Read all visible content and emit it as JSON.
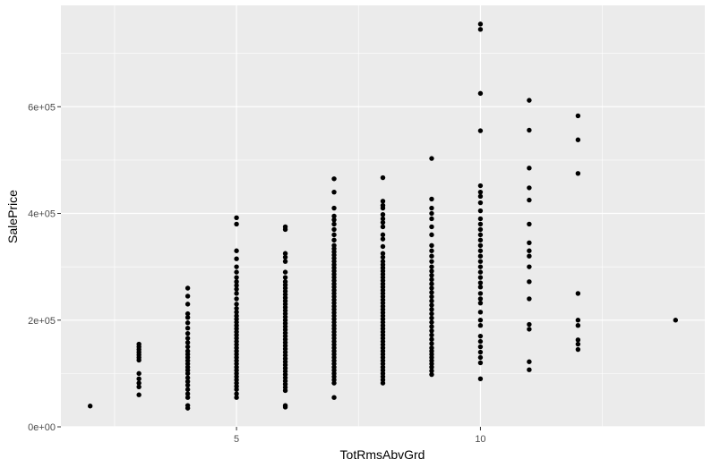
{
  "chart_data": {
    "type": "scatter",
    "xlabel": "TotRmsAbvGrd",
    "ylabel": "SalePrice",
    "xlim": [
      1.4,
      14.6
    ],
    "ylim": [
      0,
      790000
    ],
    "x_ticks": [
      {
        "value": 5,
        "label": "5"
      },
      {
        "value": 10,
        "label": "10"
      }
    ],
    "x_minor_ticks": [
      2.5,
      7.5,
      12.5
    ],
    "y_ticks": [
      {
        "value": 0,
        "label": "0e+00"
      },
      {
        "value": 200000,
        "label": "2e+05"
      },
      {
        "value": 400000,
        "label": "4e+05"
      },
      {
        "value": 600000,
        "label": "6e+05"
      }
    ],
    "y_minor_ticks": [
      100000,
      300000,
      500000,
      700000
    ],
    "grid": true,
    "colors": {
      "panel": "#ebebeb",
      "grid": "#ffffff",
      "point": "#000000"
    },
    "points": [
      [
        2,
        39000
      ],
      [
        3,
        60000
      ],
      [
        3,
        75000
      ],
      [
        3,
        82000
      ],
      [
        3,
        90000
      ],
      [
        3,
        100000
      ],
      [
        3,
        125000
      ],
      [
        3,
        130000
      ],
      [
        3,
        135000
      ],
      [
        3,
        140000
      ],
      [
        3,
        145000
      ],
      [
        3,
        150000
      ],
      [
        3,
        155000
      ],
      [
        4,
        35000
      ],
      [
        4,
        40000
      ],
      [
        4,
        55000
      ],
      [
        4,
        62000
      ],
      [
        4,
        70000
      ],
      [
        4,
        78000
      ],
      [
        4,
        85000
      ],
      [
        4,
        92000
      ],
      [
        4,
        100000
      ],
      [
        4,
        106000
      ],
      [
        4,
        112000
      ],
      [
        4,
        118000
      ],
      [
        4,
        124000
      ],
      [
        4,
        130000
      ],
      [
        4,
        136000
      ],
      [
        4,
        142000
      ],
      [
        4,
        150000
      ],
      [
        4,
        158000
      ],
      [
        4,
        166000
      ],
      [
        4,
        175000
      ],
      [
        4,
        185000
      ],
      [
        4,
        195000
      ],
      [
        4,
        205000
      ],
      [
        4,
        212000
      ],
      [
        4,
        230000
      ],
      [
        4,
        245000
      ],
      [
        4,
        260000
      ],
      [
        5,
        55000
      ],
      [
        5,
        62000
      ],
      [
        5,
        70000
      ],
      [
        5,
        76000
      ],
      [
        5,
        82000
      ],
      [
        5,
        88000
      ],
      [
        5,
        94000
      ],
      [
        5,
        100000
      ],
      [
        5,
        106000
      ],
      [
        5,
        112000
      ],
      [
        5,
        118000
      ],
      [
        5,
        124000
      ],
      [
        5,
        130000
      ],
      [
        5,
        136000
      ],
      [
        5,
        142000
      ],
      [
        5,
        148000
      ],
      [
        5,
        154000
      ],
      [
        5,
        160000
      ],
      [
        5,
        166000
      ],
      [
        5,
        172000
      ],
      [
        5,
        178000
      ],
      [
        5,
        184000
      ],
      [
        5,
        190000
      ],
      [
        5,
        196000
      ],
      [
        5,
        202000
      ],
      [
        5,
        208000
      ],
      [
        5,
        215000
      ],
      [
        5,
        222000
      ],
      [
        5,
        230000
      ],
      [
        5,
        240000
      ],
      [
        5,
        250000
      ],
      [
        5,
        258000
      ],
      [
        5,
        265000
      ],
      [
        5,
        272000
      ],
      [
        5,
        280000
      ],
      [
        5,
        290000
      ],
      [
        5,
        300000
      ],
      [
        5,
        315000
      ],
      [
        5,
        330000
      ],
      [
        5,
        380000
      ],
      [
        5,
        392000
      ],
      [
        6,
        37000
      ],
      [
        6,
        40000
      ],
      [
        6,
        68000
      ],
      [
        6,
        74000
      ],
      [
        6,
        80000
      ],
      [
        6,
        86000
      ],
      [
        6,
        92000
      ],
      [
        6,
        98000
      ],
      [
        6,
        104000
      ],
      [
        6,
        110000
      ],
      [
        6,
        116000
      ],
      [
        6,
        122000
      ],
      [
        6,
        128000
      ],
      [
        6,
        134000
      ],
      [
        6,
        140000
      ],
      [
        6,
        146000
      ],
      [
        6,
        152000
      ],
      [
        6,
        158000
      ],
      [
        6,
        164000
      ],
      [
        6,
        170000
      ],
      [
        6,
        176000
      ],
      [
        6,
        182000
      ],
      [
        6,
        188000
      ],
      [
        6,
        194000
      ],
      [
        6,
        200000
      ],
      [
        6,
        206000
      ],
      [
        6,
        212000
      ],
      [
        6,
        218000
      ],
      [
        6,
        224000
      ],
      [
        6,
        230000
      ],
      [
        6,
        236000
      ],
      [
        6,
        242000
      ],
      [
        6,
        248000
      ],
      [
        6,
        254000
      ],
      [
        6,
        260000
      ],
      [
        6,
        266000
      ],
      [
        6,
        272000
      ],
      [
        6,
        280000
      ],
      [
        6,
        290000
      ],
      [
        6,
        310000
      ],
      [
        6,
        318000
      ],
      [
        6,
        325000
      ],
      [
        6,
        370000
      ],
      [
        6,
        375000
      ],
      [
        7,
        55000
      ],
      [
        7,
        82000
      ],
      [
        7,
        88000
      ],
      [
        7,
        94000
      ],
      [
        7,
        100000
      ],
      [
        7,
        106000
      ],
      [
        7,
        112000
      ],
      [
        7,
        118000
      ],
      [
        7,
        124000
      ],
      [
        7,
        130000
      ],
      [
        7,
        136000
      ],
      [
        7,
        142000
      ],
      [
        7,
        148000
      ],
      [
        7,
        154000
      ],
      [
        7,
        160000
      ],
      [
        7,
        166000
      ],
      [
        7,
        172000
      ],
      [
        7,
        178000
      ],
      [
        7,
        184000
      ],
      [
        7,
        190000
      ],
      [
        7,
        196000
      ],
      [
        7,
        202000
      ],
      [
        7,
        208000
      ],
      [
        7,
        214000
      ],
      [
        7,
        220000
      ],
      [
        7,
        226000
      ],
      [
        7,
        232000
      ],
      [
        7,
        238000
      ],
      [
        7,
        244000
      ],
      [
        7,
        250000
      ],
      [
        7,
        256000
      ],
      [
        7,
        262000
      ],
      [
        7,
        268000
      ],
      [
        7,
        274000
      ],
      [
        7,
        280000
      ],
      [
        7,
        286000
      ],
      [
        7,
        292000
      ],
      [
        7,
        298000
      ],
      [
        7,
        304000
      ],
      [
        7,
        310000
      ],
      [
        7,
        316000
      ],
      [
        7,
        322000
      ],
      [
        7,
        328000
      ],
      [
        7,
        334000
      ],
      [
        7,
        340000
      ],
      [
        7,
        350000
      ],
      [
        7,
        360000
      ],
      [
        7,
        370000
      ],
      [
        7,
        380000
      ],
      [
        7,
        388000
      ],
      [
        7,
        395000
      ],
      [
        7,
        410000
      ],
      [
        7,
        440000
      ],
      [
        7,
        465000
      ],
      [
        8,
        82000
      ],
      [
        8,
        88000
      ],
      [
        8,
        94000
      ],
      [
        8,
        100000
      ],
      [
        8,
        106000
      ],
      [
        8,
        112000
      ],
      [
        8,
        118000
      ],
      [
        8,
        124000
      ],
      [
        8,
        130000
      ],
      [
        8,
        136000
      ],
      [
        8,
        142000
      ],
      [
        8,
        148000
      ],
      [
        8,
        154000
      ],
      [
        8,
        160000
      ],
      [
        8,
        166000
      ],
      [
        8,
        172000
      ],
      [
        8,
        178000
      ],
      [
        8,
        184000
      ],
      [
        8,
        190000
      ],
      [
        8,
        196000
      ],
      [
        8,
        202000
      ],
      [
        8,
        208000
      ],
      [
        8,
        214000
      ],
      [
        8,
        220000
      ],
      [
        8,
        226000
      ],
      [
        8,
        232000
      ],
      [
        8,
        238000
      ],
      [
        8,
        244000
      ],
      [
        8,
        250000
      ],
      [
        8,
        256000
      ],
      [
        8,
        262000
      ],
      [
        8,
        268000
      ],
      [
        8,
        274000
      ],
      [
        8,
        280000
      ],
      [
        8,
        286000
      ],
      [
        8,
        292000
      ],
      [
        8,
        298000
      ],
      [
        8,
        304000
      ],
      [
        8,
        310000
      ],
      [
        8,
        318000
      ],
      [
        8,
        325000
      ],
      [
        8,
        338000
      ],
      [
        8,
        352000
      ],
      [
        8,
        360000
      ],
      [
        8,
        375000
      ],
      [
        8,
        383000
      ],
      [
        8,
        390000
      ],
      [
        8,
        398000
      ],
      [
        8,
        410000
      ],
      [
        8,
        415000
      ],
      [
        8,
        423000
      ],
      [
        8,
        467000
      ],
      [
        9,
        98000
      ],
      [
        9,
        105000
      ],
      [
        9,
        112000
      ],
      [
        9,
        118000
      ],
      [
        9,
        124000
      ],
      [
        9,
        130000
      ],
      [
        9,
        136000
      ],
      [
        9,
        142000
      ],
      [
        9,
        148000
      ],
      [
        9,
        156000
      ],
      [
        9,
        164000
      ],
      [
        9,
        172000
      ],
      [
        9,
        180000
      ],
      [
        9,
        188000
      ],
      [
        9,
        196000
      ],
      [
        9,
        204000
      ],
      [
        9,
        212000
      ],
      [
        9,
        220000
      ],
      [
        9,
        228000
      ],
      [
        9,
        236000
      ],
      [
        9,
        244000
      ],
      [
        9,
        252000
      ],
      [
        9,
        260000
      ],
      [
        9,
        268000
      ],
      [
        9,
        276000
      ],
      [
        9,
        284000
      ],
      [
        9,
        292000
      ],
      [
        9,
        300000
      ],
      [
        9,
        310000
      ],
      [
        9,
        320000
      ],
      [
        9,
        330000
      ],
      [
        9,
        340000
      ],
      [
        9,
        360000
      ],
      [
        9,
        375000
      ],
      [
        9,
        390000
      ],
      [
        9,
        400000
      ],
      [
        9,
        410000
      ],
      [
        9,
        427000
      ],
      [
        9,
        503000
      ],
      [
        10,
        90000
      ],
      [
        10,
        120000
      ],
      [
        10,
        130000
      ],
      [
        10,
        140000
      ],
      [
        10,
        150000
      ],
      [
        10,
        160000
      ],
      [
        10,
        170000
      ],
      [
        10,
        190000
      ],
      [
        10,
        200000
      ],
      [
        10,
        215000
      ],
      [
        10,
        232000
      ],
      [
        10,
        240000
      ],
      [
        10,
        250000
      ],
      [
        10,
        262000
      ],
      [
        10,
        270000
      ],
      [
        10,
        280000
      ],
      [
        10,
        290000
      ],
      [
        10,
        300000
      ],
      [
        10,
        310000
      ],
      [
        10,
        320000
      ],
      [
        10,
        330000
      ],
      [
        10,
        340000
      ],
      [
        10,
        350000
      ],
      [
        10,
        360000
      ],
      [
        10,
        370000
      ],
      [
        10,
        380000
      ],
      [
        10,
        390000
      ],
      [
        10,
        405000
      ],
      [
        10,
        420000
      ],
      [
        10,
        432000
      ],
      [
        10,
        440000
      ],
      [
        10,
        452000
      ],
      [
        10,
        555000
      ],
      [
        10,
        625000
      ],
      [
        10,
        745000
      ],
      [
        10,
        755000
      ],
      [
        11,
        107000
      ],
      [
        11,
        122000
      ],
      [
        11,
        183000
      ],
      [
        11,
        192000
      ],
      [
        11,
        240000
      ],
      [
        11,
        272000
      ],
      [
        11,
        300000
      ],
      [
        11,
        320000
      ],
      [
        11,
        330000
      ],
      [
        11,
        345000
      ],
      [
        11,
        380000
      ],
      [
        11,
        425000
      ],
      [
        11,
        448000
      ],
      [
        11,
        485000
      ],
      [
        11,
        556000
      ],
      [
        11,
        612000
      ],
      [
        12,
        145000
      ],
      [
        12,
        155000
      ],
      [
        12,
        163000
      ],
      [
        12,
        190000
      ],
      [
        12,
        200000
      ],
      [
        12,
        250000
      ],
      [
        12,
        475000
      ],
      [
        12,
        538000
      ],
      [
        12,
        583000
      ],
      [
        14,
        200000
      ]
    ]
  }
}
